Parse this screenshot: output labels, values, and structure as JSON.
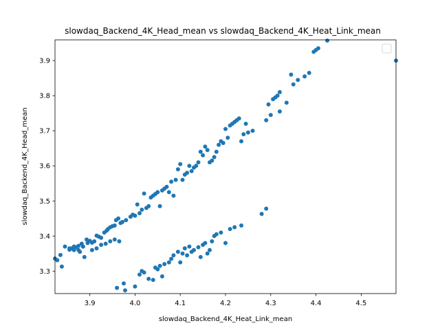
{
  "chart_data": {
    "type": "scatter",
    "title": "slowdaq_Backend_4K_Head_mean vs slowdaq_Backend_4K_Heat_Link_mean",
    "xlabel": "slowdaq_Backend_4K_Heat_Link_mean",
    "ylabel": "slowdaq_Backend_4K_Head_mean",
    "xlim": [
      3.823,
      4.577
    ],
    "ylim": [
      3.236,
      3.959
    ],
    "xticks": [
      3.9,
      4.0,
      4.1,
      4.2,
      4.3,
      4.4,
      4.5
    ],
    "xtick_labels": [
      "3.9",
      "4.0",
      "4.1",
      "4.2",
      "4.3",
      "4.4",
      "4.5"
    ],
    "yticks": [
      3.3,
      3.4,
      3.5,
      3.6,
      3.7,
      3.8,
      3.9
    ],
    "ytick_labels": [
      "3.3",
      "3.4",
      "3.5",
      "3.6",
      "3.7",
      "3.8",
      "3.9"
    ],
    "grid": false,
    "legend": "upper-right (empty)",
    "marker_color": "#1f77b4",
    "series": [
      {
        "points": [
          [
            3.823,
            3.336
          ],
          [
            3.828,
            3.331
          ],
          [
            3.835,
            3.346
          ],
          [
            3.838,
            3.313
          ],
          [
            3.855,
            3.361
          ],
          [
            3.86,
            3.365
          ],
          [
            3.865,
            3.37
          ],
          [
            3.87,
            3.368
          ],
          [
            3.875,
            3.372
          ],
          [
            3.878,
            3.355
          ],
          [
            3.882,
            3.378
          ],
          [
            3.885,
            3.37
          ],
          [
            3.888,
            3.34
          ],
          [
            3.893,
            3.39
          ],
          [
            3.9,
            3.386
          ],
          [
            3.905,
            3.381
          ],
          [
            3.91,
            3.385
          ],
          [
            3.915,
            3.401
          ],
          [
            3.92,
            3.398
          ],
          [
            3.925,
            3.395
          ],
          [
            3.932,
            3.41
          ],
          [
            3.937,
            3.415
          ],
          [
            3.94,
            3.42
          ],
          [
            3.945,
            3.425
          ],
          [
            3.95,
            3.428
          ],
          [
            3.955,
            3.43
          ],
          [
            3.958,
            3.445
          ],
          [
            3.963,
            3.45
          ],
          [
            3.968,
            3.437
          ],
          [
            3.972,
            3.44
          ],
          [
            3.98,
            3.445
          ],
          [
            3.99,
            3.455
          ],
          [
            3.995,
            3.461
          ],
          [
            4.0,
            3.458
          ],
          [
            4.005,
            3.49
          ],
          [
            4.01,
            3.465
          ],
          [
            4.015,
            3.475
          ],
          [
            4.02,
            3.521
          ],
          [
            4.025,
            3.48
          ],
          [
            4.03,
            3.485
          ],
          [
            4.035,
            3.51
          ],
          [
            4.04,
            3.515
          ],
          [
            4.045,
            3.52
          ],
          [
            4.05,
            3.525
          ],
          [
            4.055,
            3.485
          ],
          [
            4.06,
            3.53
          ],
          [
            4.065,
            3.535
          ],
          [
            4.07,
            3.54
          ],
          [
            4.075,
            3.525
          ],
          [
            4.08,
            3.555
          ],
          [
            4.085,
            3.515
          ],
          [
            4.09,
            3.56
          ],
          [
            4.095,
            3.59
          ],
          [
            4.1,
            3.605
          ],
          [
            4.105,
            3.56
          ],
          [
            4.11,
            3.575
          ],
          [
            4.115,
            3.58
          ],
          [
            4.12,
            3.6
          ],
          [
            4.125,
            3.585
          ],
          [
            4.13,
            3.595
          ],
          [
            4.135,
            3.6
          ],
          [
            4.14,
            3.61
          ],
          [
            4.145,
            3.64
          ],
          [
            4.15,
            3.63
          ],
          [
            4.155,
            3.655
          ],
          [
            4.16,
            3.645
          ],
          [
            4.165,
            3.61
          ],
          [
            4.17,
            3.615
          ],
          [
            4.175,
            3.625
          ],
          [
            4.18,
            3.64
          ],
          [
            4.185,
            3.66
          ],
          [
            4.19,
            3.67
          ],
          [
            4.195,
            3.665
          ],
          [
            4.2,
            3.705
          ],
          [
            4.205,
            3.68
          ],
          [
            4.21,
            3.715
          ],
          [
            4.215,
            3.72
          ],
          [
            4.22,
            3.725
          ],
          [
            4.225,
            3.73
          ],
          [
            4.23,
            3.735
          ],
          [
            4.235,
            3.67
          ],
          [
            4.24,
            3.69
          ],
          [
            4.245,
            3.72
          ],
          [
            4.25,
            3.695
          ],
          [
            4.26,
            3.7
          ],
          [
            4.29,
            3.73
          ],
          [
            4.295,
            3.775
          ],
          [
            4.3,
            3.745
          ],
          [
            4.305,
            3.79
          ],
          [
            4.31,
            3.795
          ],
          [
            4.315,
            3.8
          ],
          [
            4.32,
            3.81
          ],
          [
            4.32,
            3.755
          ],
          [
            4.335,
            3.78
          ],
          [
            4.345,
            3.86
          ],
          [
            4.35,
            3.832
          ],
          [
            4.36,
            3.845
          ],
          [
            4.375,
            3.855
          ],
          [
            4.385,
            3.865
          ],
          [
            4.395,
            3.925
          ],
          [
            4.4,
            3.93
          ],
          [
            4.405,
            3.935
          ],
          [
            4.425,
            3.957
          ],
          [
            4.577,
            3.9
          ]
        ]
      },
      {
        "points": [
          [
            3.845,
            3.37
          ],
          [
            3.855,
            3.365
          ],
          [
            3.865,
            3.36
          ],
          [
            3.875,
            3.36
          ],
          [
            3.885,
            3.37
          ],
          [
            3.895,
            3.38
          ],
          [
            3.905,
            3.36
          ],
          [
            3.915,
            3.365
          ],
          [
            3.925,
            3.375
          ],
          [
            3.935,
            3.378
          ],
          [
            3.945,
            3.385
          ],
          [
            3.955,
            3.39
          ],
          [
            3.965,
            3.385
          ],
          [
            3.975,
            3.265
          ],
          [
            3.96,
            3.252
          ],
          [
            3.978,
            3.245
          ],
          [
            4.0,
            3.256
          ],
          [
            4.01,
            3.29
          ],
          [
            4.015,
            3.3
          ],
          [
            4.02,
            3.296
          ],
          [
            4.03,
            3.278
          ],
          [
            4.04,
            3.275
          ],
          [
            4.045,
            3.31
          ],
          [
            4.05,
            3.305
          ],
          [
            4.055,
            3.315
          ],
          [
            4.06,
            3.285
          ],
          [
            4.065,
            3.32
          ],
          [
            4.075,
            3.325
          ],
          [
            4.08,
            3.335
          ],
          [
            4.085,
            3.345
          ],
          [
            4.095,
            3.355
          ],
          [
            4.1,
            3.325
          ],
          [
            4.105,
            3.35
          ],
          [
            4.11,
            3.365
          ],
          [
            4.115,
            3.345
          ],
          [
            4.12,
            3.37
          ],
          [
            4.125,
            3.355
          ],
          [
            4.13,
            3.36
          ],
          [
            4.14,
            3.368
          ],
          [
            4.145,
            3.34
          ],
          [
            4.15,
            3.375
          ],
          [
            4.155,
            3.38
          ],
          [
            4.16,
            3.35
          ],
          [
            4.165,
            3.36
          ],
          [
            4.17,
            3.385
          ],
          [
            4.175,
            3.4
          ],
          [
            4.18,
            3.405
          ],
          [
            4.19,
            3.41
          ],
          [
            4.2,
            3.38
          ],
          [
            4.21,
            3.42
          ],
          [
            4.22,
            3.425
          ],
          [
            4.235,
            3.43
          ],
          [
            4.28,
            3.463
          ],
          [
            4.29,
            3.478
          ]
        ]
      }
    ]
  }
}
